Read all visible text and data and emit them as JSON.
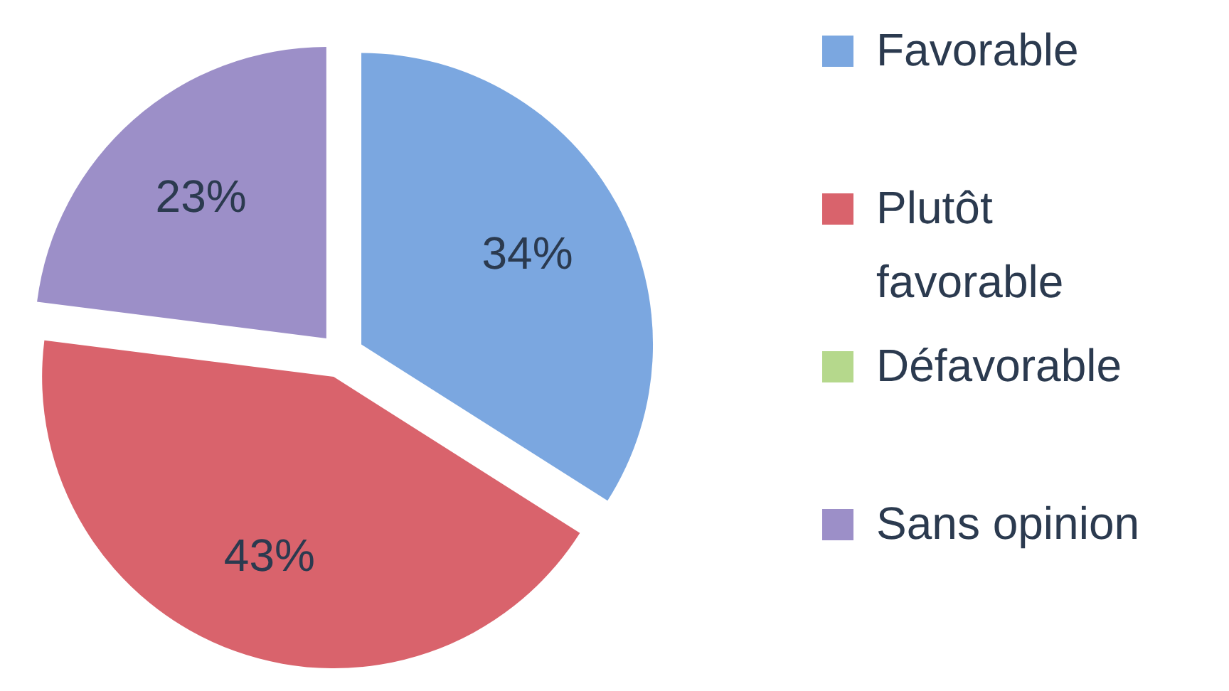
{
  "chart_data": {
    "type": "pie",
    "categories": [
      "Favorable",
      "Plutôt favorable",
      "Défavorable",
      "Sans opinion"
    ],
    "values": [
      34,
      43,
      0,
      23
    ],
    "colors": [
      "#7ba7e0",
      "#d9636c",
      "#b5d88c",
      "#9c8fc8"
    ],
    "value_labels": [
      "34%",
      "43%",
      null,
      "23%"
    ],
    "legend": "right"
  }
}
